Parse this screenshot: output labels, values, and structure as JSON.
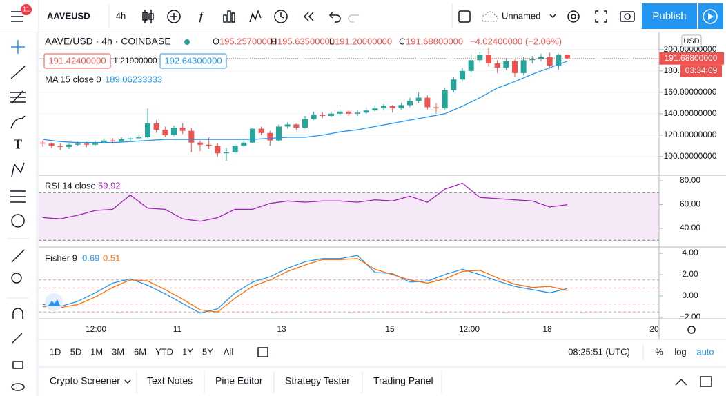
{
  "toolbar": {
    "symbol": "AAVEUSD",
    "interval": "4h",
    "layout_name": "Unnamed",
    "publish": "Publish",
    "badge": "11"
  },
  "legend": {
    "title": "AAVE/USD · 4h · COINBASE",
    "o_label": "O",
    "open": "195.25700000",
    "h_label": "H",
    "high": "195.63500000",
    "l_label": "L",
    "low": "191.20000000",
    "c_label": "C",
    "close": "191.68800000",
    "change": "−4.02400000 (−2.06%)",
    "bid": "191.42400000",
    "spread": "1.21900000",
    "ask": "192.64300000"
  },
  "price_chart": {
    "type": "candlestick",
    "up_color": "#26a69a",
    "down_color": "#ef5350",
    "candles": {
      "open": [
        113,
        112,
        110,
        109,
        111,
        112,
        111,
        113,
        115,
        114,
        116,
        117,
        118,
        131,
        125,
        120,
        127,
        124,
        113,
        111,
        110,
        103,
        104,
        110,
        113,
        126,
        122,
        115,
        128,
        130,
        127,
        135,
        139,
        138,
        140,
        142,
        140,
        141,
        143,
        145,
        147,
        145,
        148,
        152,
        155,
        146,
        145,
        162,
        172,
        180,
        190,
        195,
        187,
        183,
        189,
        178,
        190,
        191,
        193,
        185,
        195.257
      ],
      "high": [
        115,
        113,
        112,
        112,
        114,
        114,
        115,
        117,
        117,
        118,
        119,
        120,
        145,
        134,
        128,
        129,
        131,
        127,
        115,
        118,
        112,
        108,
        112,
        115,
        127,
        128,
        124,
        130,
        132,
        131,
        138,
        142,
        141,
        142,
        144,
        143,
        143,
        146,
        148,
        149,
        148,
        150,
        155,
        160,
        157,
        150,
        164,
        174,
        183,
        195,
        198,
        202,
        190,
        192,
        191,
        193,
        194,
        196,
        197,
        196,
        195.635
      ],
      "low": [
        109,
        108,
        106,
        107,
        110,
        109,
        110,
        112,
        112,
        113,
        115,
        116,
        117,
        122,
        118,
        119,
        121,
        104,
        105,
        107,
        100,
        96,
        102,
        109,
        112,
        120,
        110,
        114,
        126,
        125,
        126,
        134,
        136,
        137,
        138,
        138,
        138,
        140,
        142,
        143,
        141,
        144,
        146,
        150,
        144,
        140,
        144,
        160,
        170,
        178,
        188,
        184,
        178,
        181,
        174,
        176,
        187,
        189,
        182,
        181,
        191.2
      ],
      "close": [
        112,
        110,
        109,
        111,
        112,
        111,
        113,
        115,
        114,
        116,
        117,
        118,
        131,
        125,
        120,
        127,
        124,
        113,
        111,
        110,
        103,
        104,
        110,
        113,
        126,
        122,
        115,
        128,
        130,
        127,
        135,
        139,
        138,
        140,
        142,
        140,
        141,
        143,
        145,
        147,
        145,
        148,
        152,
        155,
        146,
        145,
        162,
        172,
        180,
        190,
        195,
        187,
        183,
        189,
        178,
        190,
        191,
        193,
        185,
        195,
        191.688
      ]
    },
    "ylim": [
      82.5,
      216
    ],
    "yticks": [
      {
        "value": 200,
        "label": "200.00000000"
      },
      {
        "value": 180,
        "label": "180.00000000"
      },
      {
        "value": 160,
        "label": "160.00000000"
      },
      {
        "value": 140,
        "label": "140.00000000"
      },
      {
        "value": 120,
        "label": "120.00000000"
      },
      {
        "value": 100,
        "label": "100.00000000"
      }
    ],
    "currency": "USD",
    "last_price": 191.688,
    "last_price_label": "191.68800000",
    "countdown": "03:34:09",
    "ma": {
      "name": "MA 15 close 0",
      "value_label": "189.06233333",
      "color": "#2196f3",
      "values": [
        116,
        114,
        113,
        113,
        113,
        114,
        115,
        116,
        116,
        116,
        116,
        116,
        116,
        117,
        118,
        118,
        120,
        123,
        125,
        128,
        131,
        134,
        137,
        140,
        147,
        155,
        164,
        170,
        177,
        183,
        189.06
      ]
    }
  },
  "rsi": {
    "name": "RSI 14 close",
    "value_label": "59.92",
    "color": "#9c27b0",
    "values": [
      49,
      48,
      51,
      55,
      56,
      68,
      57,
      56,
      48,
      46,
      49,
      56,
      56,
      61,
      63,
      62,
      63,
      63,
      62,
      64,
      63,
      67,
      62,
      73,
      78,
      66,
      65,
      64,
      63,
      58,
      59.92
    ],
    "ylim": [
      24.35,
      84.06
    ],
    "band": [
      30,
      70
    ],
    "yticks": [
      {
        "value": 80,
        "label": "80.00"
      },
      {
        "value": 60,
        "label": "60.00"
      },
      {
        "value": 40,
        "label": "40.00"
      }
    ]
  },
  "fisher": {
    "name": "Fisher 9",
    "ylim": [
      -2.13,
      4.52
    ],
    "levels": [
      1.5,
      0.75,
      -0.75,
      -1.5
    ],
    "series": [
      {
        "color": "#2196f3",
        "value_label": "0.69",
        "values": [
          -0.8,
          -1.0,
          -0.5,
          0.3,
          1.2,
          1.6,
          1.0,
          0.2,
          -0.7,
          -1.6,
          -1.2,
          0.3,
          1.3,
          1.8,
          2.6,
          3.2,
          3.5,
          3.5,
          3.8,
          2.2,
          2.1,
          1.3,
          1.4,
          2.0,
          2.5,
          2.0,
          1.4,
          0.9,
          0.6,
          0.3,
          0.69
        ]
      },
      {
        "color": "#ff6d00",
        "value_label": "0.51",
        "values": [
          -1.0,
          -1.1,
          -0.8,
          -0.1,
          0.8,
          1.5,
          1.4,
          0.6,
          -0.3,
          -1.3,
          -1.5,
          -0.2,
          0.9,
          1.5,
          2.3,
          2.9,
          3.4,
          3.4,
          3.5,
          2.5,
          2.0,
          1.5,
          1.2,
          1.6,
          2.3,
          2.4,
          1.7,
          1.1,
          0.8,
          0.9,
          0.51
        ]
      }
    ],
    "yticks": [
      {
        "value": 4,
        "label": "4.00"
      },
      {
        "value": 2,
        "label": "2.00"
      },
      {
        "value": 0,
        "label": "0.00"
      },
      {
        "value": -2,
        "label": "−2.00"
      }
    ]
  },
  "time_axis": [
    "12:00",
    "11",
    "13",
    "15",
    "12:00",
    "18",
    "20"
  ],
  "ranges": [
    "1D",
    "5D",
    "1M",
    "3M",
    "6M",
    "YTD",
    "1Y",
    "5Y",
    "All"
  ],
  "clock": "08:25:51 (UTC)",
  "scale_options": [
    "%",
    "log",
    "auto"
  ],
  "tabs": [
    "Crypto Screener",
    "Text Notes",
    "Pine Editor",
    "Strategy Tester",
    "Trading Panel"
  ]
}
